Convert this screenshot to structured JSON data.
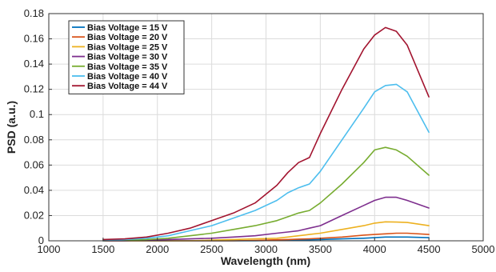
{
  "chart_data": {
    "type": "line",
    "title": "",
    "xlabel": "Wavelength (nm)",
    "ylabel": "PSD (a.u.)",
    "xlim": [
      1000,
      5000
    ],
    "ylim": [
      0,
      0.18
    ],
    "xticks": [
      1000,
      1500,
      2000,
      2500,
      3000,
      3500,
      4000,
      4500,
      5000
    ],
    "xtick_labels": [
      "1000",
      "1500",
      "2000",
      "2500",
      "3000",
      "3500",
      "4000",
      "4500",
      "5000"
    ],
    "yticks": [
      0,
      0.02,
      0.04,
      0.06,
      0.08,
      0.1,
      0.12,
      0.14,
      0.16,
      0.18
    ],
    "ytick_labels": [
      "0",
      "0.02",
      "0.04",
      "0.06",
      "0.08",
      "0.1",
      "0.12",
      "0.14",
      "0.16",
      "0.18"
    ],
    "grid": true,
    "legend_position": "top-left",
    "x": [
      1500,
      1700,
      1900,
      2100,
      2300,
      2500,
      2700,
      2900,
      3100,
      3200,
      3300,
      3400,
      3500,
      3700,
      3900,
      4000,
      4100,
      4200,
      4300,
      4500
    ],
    "series": [
      {
        "name": "Bias Voltage = 15 V",
        "color": "#0072BD",
        "values": [
          0.0,
          0.0,
          0.0,
          0.0,
          0.0,
          0.0,
          0.0,
          0.0,
          0.0003,
          0.0005,
          0.0006,
          0.0008,
          0.001,
          0.0015,
          0.002,
          0.0025,
          0.003,
          0.003,
          0.003,
          0.0025
        ]
      },
      {
        "name": "Bias Voltage = 20 V",
        "color": "#D95319",
        "values": [
          0.0,
          0.0,
          0.0,
          0.0,
          0.0,
          0.0,
          0.0,
          0.0003,
          0.0008,
          0.001,
          0.0013,
          0.0016,
          0.002,
          0.003,
          0.0045,
          0.005,
          0.0055,
          0.006,
          0.006,
          0.005
        ]
      },
      {
        "name": "Bias Voltage = 25 V",
        "color": "#EDB120",
        "values": [
          0.0,
          0.0,
          0.0,
          0.0,
          0.0,
          0.0005,
          0.001,
          0.0015,
          0.002,
          0.003,
          0.004,
          0.005,
          0.006,
          0.009,
          0.012,
          0.014,
          0.015,
          0.0148,
          0.0145,
          0.012
        ]
      },
      {
        "name": "Bias Voltage = 30 V",
        "color": "#7E2F8E",
        "values": [
          0.0,
          0.0,
          0.0005,
          0.001,
          0.0015,
          0.002,
          0.003,
          0.004,
          0.006,
          0.007,
          0.008,
          0.01,
          0.012,
          0.02,
          0.028,
          0.032,
          0.0345,
          0.0345,
          0.032,
          0.026
        ]
      },
      {
        "name": "Bias Voltage = 35 V",
        "color": "#77AC30",
        "values": [
          0.0,
          0.0005,
          0.001,
          0.002,
          0.004,
          0.006,
          0.009,
          0.012,
          0.016,
          0.019,
          0.022,
          0.024,
          0.03,
          0.045,
          0.062,
          0.072,
          0.074,
          0.072,
          0.067,
          0.052
        ]
      },
      {
        "name": "Bias Voltage = 40 V",
        "color": "#4DBEEE",
        "values": [
          0.0,
          0.001,
          0.002,
          0.004,
          0.008,
          0.012,
          0.018,
          0.024,
          0.032,
          0.038,
          0.042,
          0.045,
          0.055,
          0.08,
          0.105,
          0.118,
          0.123,
          0.124,
          0.118,
          0.086
        ]
      },
      {
        "name": "Bias Voltage = 44 V",
        "color": "#A2142F",
        "values": [
          0.001,
          0.0015,
          0.003,
          0.006,
          0.01,
          0.016,
          0.022,
          0.03,
          0.044,
          0.054,
          0.062,
          0.066,
          0.085,
          0.12,
          0.152,
          0.163,
          0.169,
          0.166,
          0.155,
          0.114
        ]
      }
    ]
  }
}
